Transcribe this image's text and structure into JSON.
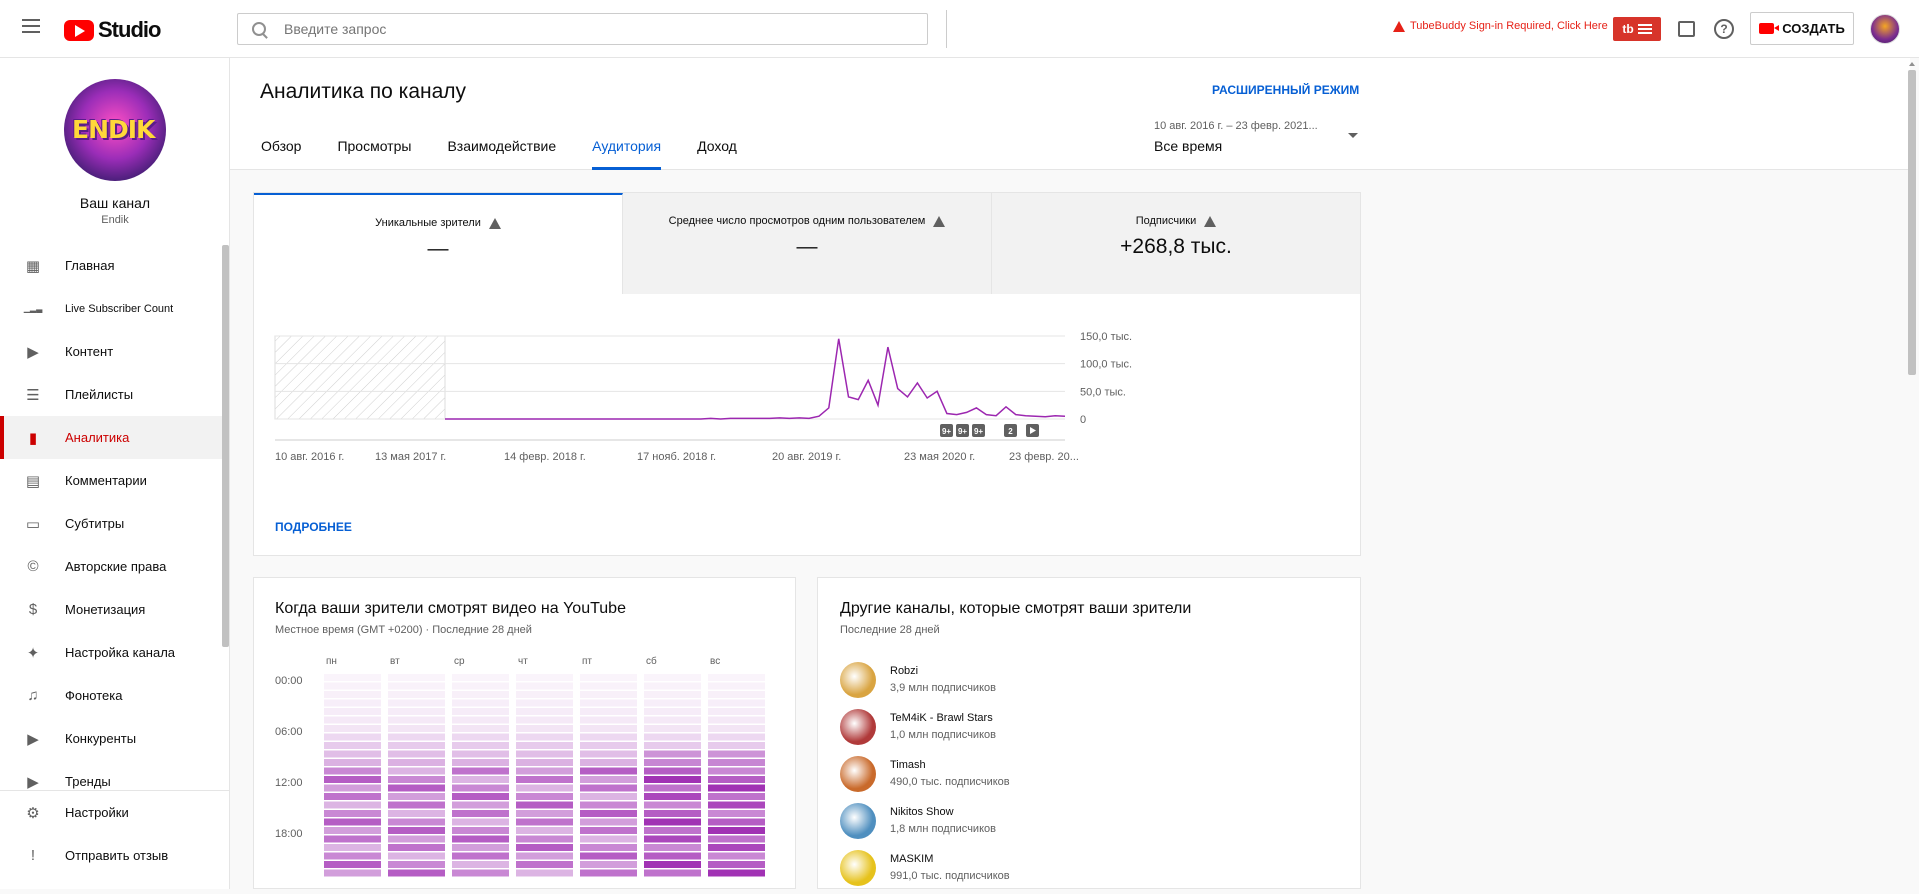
{
  "header": {
    "logo_text": "Studio",
    "search_placeholder": "Введите запрос",
    "tubebuddy_warning": "TubeBuddy Sign-in Required, Click Here",
    "tubebuddy_badge": "tb",
    "create_label": "СОЗДАТЬ",
    "help_glyph": "?"
  },
  "sidebar": {
    "channel_title": "Ваш канал",
    "channel_handle": "Endik",
    "avatar_text": "ENDIK",
    "items": [
      {
        "label": "Главная",
        "icon": "dashboard-icon"
      },
      {
        "label": "Live Subscriber Count",
        "icon": "signal-bars-icon"
      },
      {
        "label": "Контент",
        "icon": "video-library-icon"
      },
      {
        "label": "Плейлисты",
        "icon": "playlist-icon"
      },
      {
        "label": "Аналитика",
        "icon": "analytics-icon",
        "active": true
      },
      {
        "label": "Комментарии",
        "icon": "comment-icon"
      },
      {
        "label": "Субтитры",
        "icon": "subtitles-icon"
      },
      {
        "label": "Авторские права",
        "icon": "copyright-icon"
      },
      {
        "label": "Монетизация",
        "icon": "dollar-icon"
      },
      {
        "label": "Настройка канала",
        "icon": "magic-wand-icon"
      },
      {
        "label": "Фонотека",
        "icon": "audio-library-icon"
      },
      {
        "label": "Конкуренты",
        "icon": "competitors-icon"
      },
      {
        "label": "Тренды",
        "icon": "trends-icon"
      }
    ],
    "bottom_items": [
      {
        "label": "Настройки",
        "icon": "gear-icon"
      },
      {
        "label": "Отправить отзыв",
        "icon": "feedback-icon"
      }
    ]
  },
  "page": {
    "title": "Аналитика по каналу",
    "advanced_mode": "РАСШИРЕННЫЙ РЕЖИМ",
    "tabs": [
      "Обзор",
      "Просмотры",
      "Взаимодействие",
      "Аудитория",
      "Доход"
    ],
    "active_tab": "Аудитория",
    "date_range_small": "10 авг. 2016 г. – 23 февр. 2021...",
    "date_range_value": "Все время"
  },
  "metrics": [
    {
      "label": "Уникальные зрители",
      "value": "—"
    },
    {
      "label": "Среднее число просмотров одним пользователем",
      "value": "—"
    },
    {
      "label": "Подписчики",
      "value": "+268,8 тыс."
    }
  ],
  "chart_data": {
    "type": "line",
    "series": [
      {
        "values": [
          0,
          0,
          0,
          0,
          0,
          0,
          0,
          0,
          0,
          0,
          0,
          0,
          0,
          0,
          0,
          0,
          0,
          0,
          0,
          0,
          0,
          0,
          0,
          0,
          0,
          0,
          0,
          1,
          0,
          1,
          1,
          1,
          1,
          1,
          2,
          1,
          2,
          1,
          5,
          20,
          145,
          40,
          35,
          70,
          25,
          130,
          55,
          40,
          65,
          38,
          50,
          10,
          8,
          12,
          20,
          8,
          6,
          22,
          8,
          6,
          5,
          4,
          6,
          5
        ]
      }
    ],
    "x_tick_labels": [
      "10 авг. 2016 г.",
      "13 мая 2017 г.",
      "14 февр. 2018 г.",
      "17 нояб. 2018 г.",
      "20 авг. 2019 г.",
      "23 мая 2020 г.",
      "23 февр. 20..."
    ],
    "y_tick_labels": [
      "150,0 тыс.",
      "100,0 тыс.",
      "50,0 тыс.",
      "0"
    ],
    "ylim": [
      0,
      150
    ],
    "markers": [
      "9+",
      "9+",
      "9+",
      "2",
      "play"
    ],
    "line_color": "#9c27b0"
  },
  "more_link": "ПОДРОБНЕЕ",
  "heatmap": {
    "title": "Когда ваши зрители смотрят видео на YouTube",
    "subtitle": "Местное время (GMT +0200) · Последние 28 дней",
    "days": [
      "пн",
      "вт",
      "ср",
      "чт",
      "пт",
      "сб",
      "вс"
    ],
    "hours": [
      "00:00",
      "06:00",
      "12:00",
      "18:00"
    ]
  },
  "other_channels": {
    "title": "Другие каналы, которые смотрят ваши зрители",
    "subtitle": "Последние 28 дней",
    "items": [
      {
        "name": "Robzi",
        "subs": "3,9 млн подписчиков",
        "color": "#d9a441"
      },
      {
        "name": "TeM4iK - Brawl Stars",
        "subs": "1,0 млн подписчиков",
        "color": "#b03a3a"
      },
      {
        "name": "Timash",
        "subs": "490,0 тыс. подписчиков",
        "color": "#c96a2b"
      },
      {
        "name": "Nikitos Show",
        "subs": "1,8 млн подписчиков",
        "color": "#4f8fbf"
      },
      {
        "name": "MASKIM",
        "subs": "991,0 тыс. подписчиков",
        "color": "#e6c21c"
      }
    ]
  }
}
